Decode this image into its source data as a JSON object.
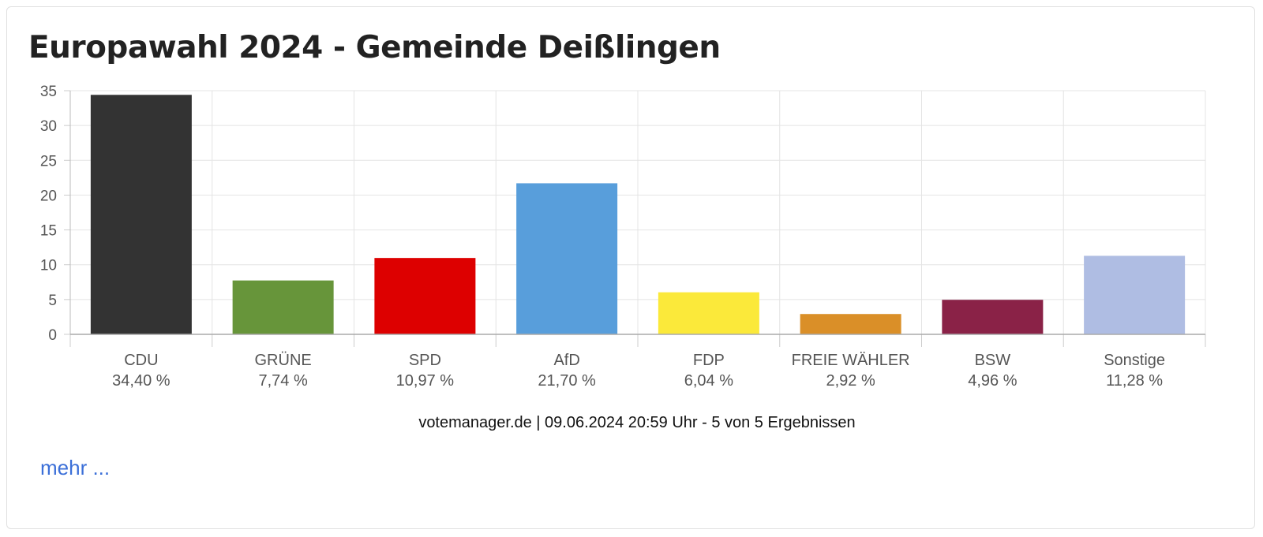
{
  "title": "Europawahl 2024 - Gemeinde Deißlingen",
  "chart_data": {
    "type": "bar",
    "title": "Europawahl 2024 - Gemeinde Deißlingen",
    "xlabel": "",
    "ylabel": "",
    "ylim": [
      0,
      35
    ],
    "yticks": [
      0,
      5,
      10,
      15,
      20,
      25,
      30,
      35
    ],
    "grid": true,
    "categories": [
      "CDU",
      "GRÜNE",
      "SPD",
      "AfD",
      "FDP",
      "FREIE WÄHLER",
      "BSW",
      "Sonstige"
    ],
    "values": [
      34.4,
      7.74,
      10.97,
      21.7,
      6.04,
      2.92,
      4.96,
      11.28
    ],
    "value_labels": [
      "34,40 %",
      "7,74 %",
      "10,97 %",
      "21,70 %",
      "6,04 %",
      "2,92 %",
      "4,96 %",
      "11,28 %"
    ],
    "colors": [
      "#333333",
      "#67953a",
      "#dd0000",
      "#589edb",
      "#fbe93a",
      "#da8f28",
      "#8a2247",
      "#afbde3"
    ]
  },
  "footer": "votemanager.de | 09.06.2024 20:59 Uhr - 5 von 5 Ergebnissen",
  "more_link": "mehr ..."
}
